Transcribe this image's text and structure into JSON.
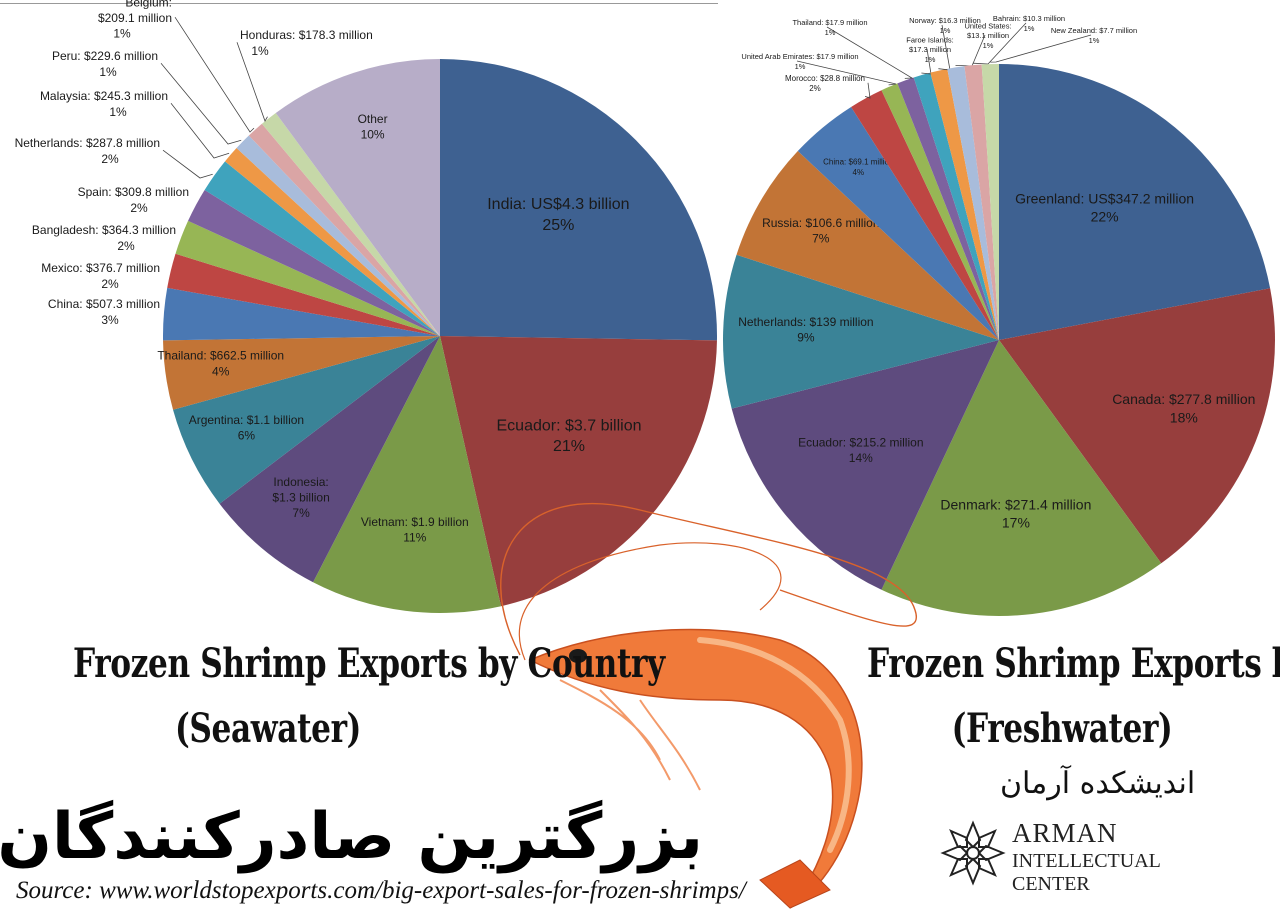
{
  "titles": {
    "seawater_line1": "Frozen Shrimp Exports by Country",
    "seawater_line2": "(Seawater)",
    "freshwater_line1": "Frozen Shrimp Exports by Country",
    "freshwater_line2": "(Freshwater)"
  },
  "headline": "بزرگترین صادرکنندگان میگو جهان",
  "source": "Source: www.worldstopexports.com/big-export-sales-for-frozen-shrimps/",
  "logo": {
    "persian": "اندیشکده آرمان",
    "line1": "ARMAN",
    "line2": "INTELLECTUAL",
    "line3": "CENTER"
  },
  "chart_data": [
    {
      "type": "pie",
      "title": "Frozen Shrimp Exports by Country (Seawater)",
      "slices": [
        {
          "label": "India: US$4.3 billion",
          "pct": "25%",
          "value": 25,
          "color": "#3E6191"
        },
        {
          "label": "Ecuador: $3.7 billion",
          "pct": "21%",
          "value": 21,
          "color": "#973E3D"
        },
        {
          "label": "Vietnam: $1.9 billion",
          "pct": "11%",
          "value": 11,
          "color": "#7A9A48"
        },
        {
          "label": "Indonesia: $1.3 billion",
          "pct": "7%",
          "value": 7,
          "color": "#5E4B7E"
        },
        {
          "label": "Argentina: $1.1 billion",
          "pct": "6%",
          "value": 6,
          "color": "#3A8397"
        },
        {
          "label": "Thailand: $662.5 million",
          "pct": "4%",
          "value": 4,
          "color": "#C27436"
        },
        {
          "label": "China: $507.3 million",
          "pct": "3%",
          "value": 3,
          "color": "#4A78B3"
        },
        {
          "label": "Mexico: $376.7 million",
          "pct": "2%",
          "value": 2,
          "color": "#BE4643"
        },
        {
          "label": "Bangladesh: $364.3 million",
          "pct": "2%",
          "value": 2,
          "color": "#97B655"
        },
        {
          "label": "Spain: $309.8 million",
          "pct": "2%",
          "value": 2,
          "color": "#7D629F"
        },
        {
          "label": "Netherlands: $287.8 million",
          "pct": "2%",
          "value": 2,
          "color": "#3FA3BD"
        },
        {
          "label": "Malaysia: $245.3 million",
          "pct": "1%",
          "value": 1,
          "color": "#EE9846"
        },
        {
          "label": "Peru: $229.6 million",
          "pct": "1%",
          "value": 1,
          "color": "#A8BCDB"
        },
        {
          "label": "Belgium: $209.1 million",
          "pct": "1%",
          "value": 1,
          "color": "#DAA5A5"
        },
        {
          "label": "Honduras: $178.3 million",
          "pct": "1%",
          "value": 1,
          "color": "#C6D8A8"
        },
        {
          "label": "Other",
          "pct": "10%",
          "value": 10,
          "color": "#B7ADC8"
        }
      ]
    },
    {
      "type": "pie",
      "title": "Frozen Shrimp Exports by Country (Freshwater)",
      "slices": [
        {
          "label": "Greenland: US$347.2 million",
          "pct": "22%",
          "value": 22,
          "color": "#3E6191"
        },
        {
          "label": "Canada: $277.8 million",
          "pct": "18%",
          "value": 18,
          "color": "#973E3D"
        },
        {
          "label": "Denmark: $271.4 million",
          "pct": "17%",
          "value": 17,
          "color": "#7A9A48"
        },
        {
          "label": "Ecuador: $215.2 million",
          "pct": "14%",
          "value": 14,
          "color": "#5E4B7E"
        },
        {
          "label": "Netherlands: $139 million",
          "pct": "9%",
          "value": 9,
          "color": "#3A8397"
        },
        {
          "label": "Russia: $106.6 million",
          "pct": "7%",
          "value": 7,
          "color": "#C27436"
        },
        {
          "label": "China: $69.1 million",
          "pct": "4%",
          "value": 4,
          "color": "#4A78B3"
        },
        {
          "label": "Morocco: $28.8 million",
          "pct": "2%",
          "value": 2,
          "color": "#BE4643"
        },
        {
          "label": "United Arab Emirates: $17.9 million",
          "pct": "1%",
          "value": 1,
          "color": "#97B655"
        },
        {
          "label": "Thailand: $17.9 million",
          "pct": "1%",
          "value": 1,
          "color": "#7D629F"
        },
        {
          "label": "Faroe Islands: $17.3 million",
          "pct": "1%",
          "value": 1,
          "color": "#3FA3BD"
        },
        {
          "label": "Norway: $16.3 million",
          "pct": "1%",
          "value": 1,
          "color": "#EE9846"
        },
        {
          "label": "United States: $13.1 million",
          "pct": "1%",
          "value": 1,
          "color": "#A8BCDB"
        },
        {
          "label": "Bahrain: $10.3 million",
          "pct": "1%",
          "value": 1,
          "color": "#DAA5A5"
        },
        {
          "label": "New Zealand: $7.7 million",
          "pct": "1%",
          "value": 1,
          "color": "#C6D8A8"
        }
      ]
    }
  ]
}
